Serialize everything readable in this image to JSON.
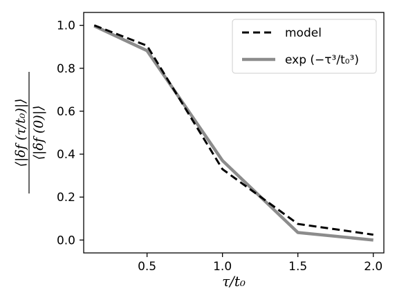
{
  "chart_data": {
    "type": "line",
    "xlabel": "τ/t₀",
    "ylabel_numerator": "⟨|δf (τ/t₀)|⟩",
    "ylabel_denominator": "⟨|δf (0)|⟩",
    "xlim": [
      0.08,
      2.07
    ],
    "ylim": [
      -0.06,
      1.06
    ],
    "xticks": [
      0.5,
      1.0,
      1.5,
      2.0
    ],
    "xtick_labels": [
      "0.5",
      "1.0",
      "1.5",
      "2.0"
    ],
    "yticks": [
      0.0,
      0.2,
      0.4,
      0.6,
      0.8,
      1.0
    ],
    "ytick_labels": [
      "0.0",
      "0.2",
      "0.4",
      "0.6",
      "0.8",
      "1.0"
    ],
    "legend_position": "upper right",
    "series": [
      {
        "name": "model",
        "color": "#000000",
        "style": "dashed",
        "x": [
          0.15,
          0.5,
          1.0,
          1.5,
          2.0
        ],
        "y": [
          1.0,
          0.905,
          0.33,
          0.075,
          0.025
        ]
      },
      {
        "name": "exp (−τ³/t₀³)",
        "color": "#8c8c8c",
        "style": "solid",
        "x": [
          0.15,
          0.5,
          1.0,
          1.5,
          2.0
        ],
        "y": [
          0.997,
          0.882,
          0.37,
          0.035,
          0.0
        ]
      }
    ]
  }
}
